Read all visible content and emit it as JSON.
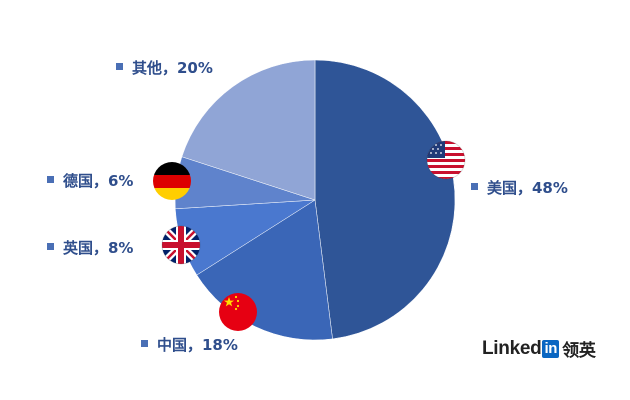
{
  "chart_data": {
    "type": "pie",
    "slices": [
      {
        "label": "美国",
        "value": 48,
        "color": "#2f5597",
        "text": "美国，48%",
        "flag": "us-flag"
      },
      {
        "label": "中国",
        "value": 18,
        "color": "#3a66b7",
        "text": "中国，18%",
        "flag": "cn-flag"
      },
      {
        "label": "英国",
        "value": 8,
        "color": "#4a78cf",
        "text": "英国，8%",
        "flag": "uk-flag"
      },
      {
        "label": "德国",
        "value": 6,
        "color": "#5f83cc",
        "text": "德国，6%",
        "flag": "de-flag"
      },
      {
        "label": "其他",
        "value": 20,
        "color": "#90a5d6",
        "text": "其他，20%",
        "flag": ""
      }
    ],
    "label_color": "#2f4e8c",
    "marker_color": "#4a6fb5"
  },
  "brand": {
    "linked": "Linked",
    "in": "in",
    "cn": "领英",
    "in_color": "#0a66c2"
  }
}
